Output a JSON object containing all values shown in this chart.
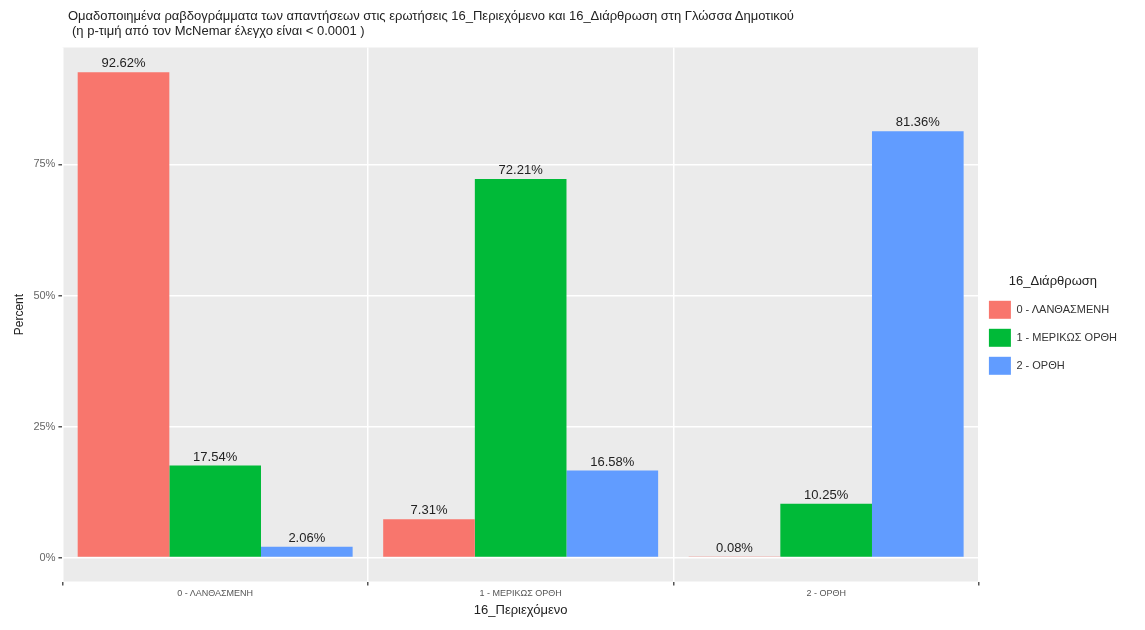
{
  "chart_data": {
    "type": "bar",
    "title": "Ομαδοποιημένα ραβδογράμματα των απαντήσεων στις ερωτήσεις 16_Περιεχόμενο και 16_Διάρθρωση στη Γλώσσα Δημοτικού",
    "subtitle": "(η p-τιμή από τον McNemar έλεγχο είναι  < 0.0001 )",
    "xlabel": "16_Περιεχόμενο",
    "ylabel": "Percent",
    "legend_title": "16_Διάρθρωση",
    "legend": "right",
    "grid": true,
    "categories": [
      "0 - ΛΑΝΘΑΣΜΕΝΗ",
      "1 - ΜΕΡΙΚΩΣ ΟΡΘΗ",
      "2 - ΟΡΘΗ"
    ],
    "ylim": [
      -4.6,
      97.3
    ],
    "yticks": [
      {
        "value": 0,
        "label": "0%"
      },
      {
        "value": 25,
        "label": "25%"
      },
      {
        "value": 50,
        "label": "50%"
      },
      {
        "value": 75,
        "label": "75%"
      }
    ],
    "series": [
      {
        "name": "0 - ΛΑΝΘΑΣΜΕΝΗ",
        "color": "#f8766d",
        "values": [
          92.62,
          7.31,
          0.08
        ],
        "value_labels": [
          "92.62%",
          "7.31%",
          "0.08%"
        ]
      },
      {
        "name": "1 - ΜΕΡΙΚΩΣ ΟΡΘΗ",
        "color": "#00ba38",
        "values": [
          17.54,
          72.21,
          10.25
        ],
        "value_labels": [
          "17.54%",
          "72.21%",
          "10.25%"
        ]
      },
      {
        "name": "2 - ΟΡΘΗ",
        "color": "#619cff",
        "values": [
          2.06,
          16.58,
          81.36
        ],
        "value_labels": [
          "2.06%",
          "16.58%",
          "81.36%"
        ]
      }
    ]
  }
}
